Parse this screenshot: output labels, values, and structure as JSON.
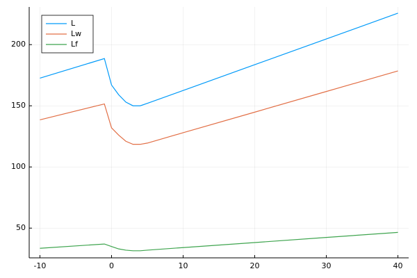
{
  "chart_data": {
    "type": "line",
    "x": [
      -10,
      -1,
      0,
      1,
      2,
      3,
      4,
      5,
      10,
      20,
      30,
      40
    ],
    "series": [
      {
        "name": "L",
        "color": "#009af9",
        "values": [
          172.6,
          188.6,
          167,
          159,
          153,
          150,
          150,
          152,
          162.5,
          183.6,
          204.6,
          225.7
        ]
      },
      {
        "name": "Lw",
        "color": "#e26f46",
        "values": [
          138.5,
          151.5,
          132,
          126,
          121,
          118.5,
          118.5,
          119.5,
          128,
          144.8,
          161.7,
          178.5
        ]
      },
      {
        "name": "Lf",
        "color": "#3ea44e",
        "values": [
          33.5,
          37,
          35,
          33,
          32,
          31.5,
          31.5,
          32,
          34.1,
          38.2,
          42.4,
          46.5
        ]
      }
    ],
    "xlim": [
      -11.5,
      41.5
    ],
    "xticks": [
      -10,
      0,
      10,
      20,
      30,
      40
    ],
    "ylim": [
      25.7,
      230.8
    ],
    "yticks": [
      50,
      100,
      150,
      200
    ],
    "grid": true,
    "legend": "top-left"
  }
}
